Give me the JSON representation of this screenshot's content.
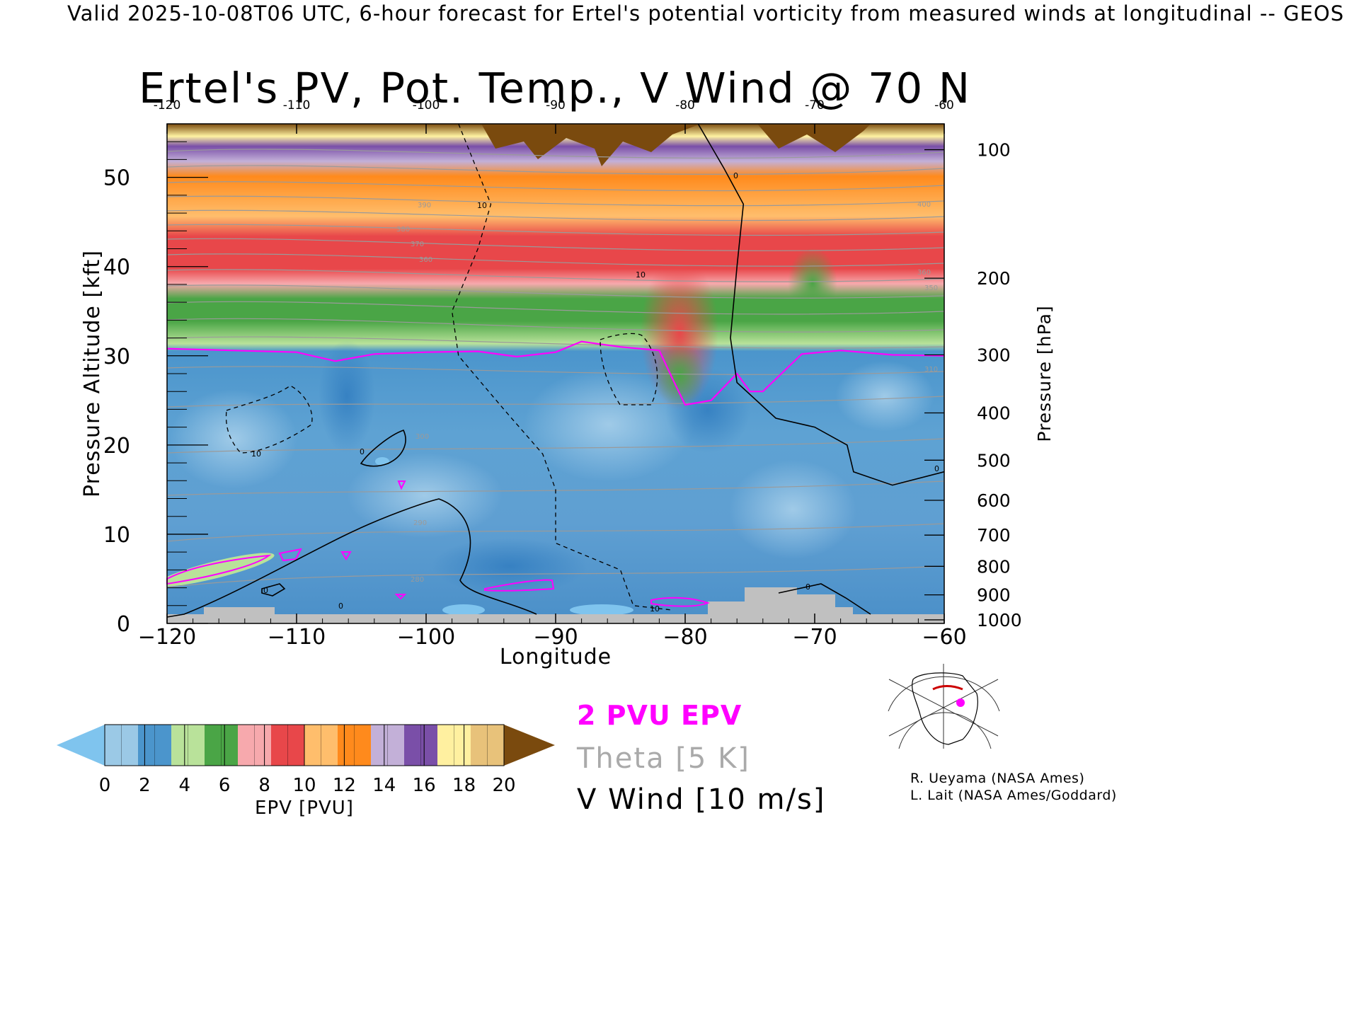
{
  "header": "Valid 2025-10-08T06 UTC, 6-hour forecast for Ertel's potential vorticity from measured winds at longitudinal -- GEOS",
  "chart_data": {
    "type": "heatmap",
    "title": "Ertel's PV, Pot. Temp., V Wind @ 70 N",
    "xlabel": "Longitude",
    "ylabel_left": "Pressure Altitude [kft]",
    "ylabel_right": "Pressure [hPa]",
    "xlim": [
      -120,
      -60
    ],
    "ylim": [
      0,
      56
    ],
    "x_ticks": [
      "−120",
      "−110",
      "−100",
      "−90",
      "−80",
      "−70",
      "−60"
    ],
    "x_ticks_top": [
      "-120",
      "-110",
      "-100",
      "-90",
      "-80",
      "-70",
      "-60"
    ],
    "y_ticks": [
      "0",
      "10",
      "20",
      "30",
      "40",
      "50"
    ],
    "pressure_ticks": [
      {
        "label": "100",
        "kft": 53.1
      },
      {
        "label": "200",
        "kft": 38.7
      },
      {
        "label": "300",
        "kft": 30.1
      },
      {
        "label": "400",
        "kft": 23.6
      },
      {
        "label": "500",
        "kft": 18.3
      },
      {
        "label": "600",
        "kft": 13.8
      },
      {
        "label": "700",
        "kft": 9.9
      },
      {
        "label": "800",
        "kft": 6.4
      },
      {
        "label": "900",
        "kft": 3.2
      },
      {
        "label": "1000",
        "kft": 0.4
      }
    ],
    "tropopause_2pvu_kft": [
      [
        -120,
        30.8
      ],
      [
        -115,
        30.6
      ],
      [
        -110,
        30.4
      ],
      [
        -107,
        29.4
      ],
      [
        -104,
        30.2
      ],
      [
        -100,
        30.4
      ],
      [
        -96,
        30.5
      ],
      [
        -93,
        29.9
      ],
      [
        -90,
        30.4
      ],
      [
        -88,
        31.6
      ],
      [
        -85,
        31.0
      ],
      [
        -82,
        30.6
      ],
      [
        -81,
        27.5
      ],
      [
        -80,
        24.5
      ],
      [
        -78,
        25.0
      ],
      [
        -77,
        26.5
      ],
      [
        -76,
        28.0
      ],
      [
        -75,
        26.0
      ],
      [
        -74,
        26.0
      ],
      [
        -71,
        30.2
      ],
      [
        -68,
        30.6
      ],
      [
        -64,
        30.1
      ],
      [
        -60,
        30.0
      ]
    ],
    "v_wind_0_kft": [
      [
        -79,
        56
      ],
      [
        -77,
        51
      ],
      [
        -75.5,
        47
      ],
      [
        -76,
        40
      ],
      [
        -76.5,
        32
      ],
      [
        -76,
        27
      ],
      [
        -73,
        23
      ],
      [
        -70,
        22
      ],
      [
        -67.5,
        20
      ],
      [
        -67,
        17
      ],
      [
        -64,
        15.5
      ],
      [
        -60,
        17
      ]
    ],
    "v_wind_10_kft": [
      [
        -97.5,
        56
      ],
      [
        -95,
        47
      ],
      [
        -96,
        42
      ],
      [
        -98,
        35
      ],
      [
        -97.5,
        30
      ],
      [
        -94,
        24
      ],
      [
        -91,
        19
      ],
      [
        -90,
        15
      ],
      [
        -90,
        9
      ],
      [
        -85,
        6
      ],
      [
        -84,
        2
      ],
      [
        -81,
        1.5
      ]
    ],
    "colorbar": {
      "label": "EPV [PVU]",
      "ticks": [
        "0",
        "2",
        "4",
        "6",
        "8",
        "10",
        "12",
        "14",
        "16",
        "18",
        "20"
      ],
      "under_color": "#7fc4ee",
      "over_color": "#7a4a0e",
      "bins": [
        "#9bc9e6",
        "#4b95cc",
        "#b9e29a",
        "#4aa546",
        "#f7a9ad",
        "#e8474a",
        "#ffbe6c",
        "#ff8a1c",
        "#c3b0d8",
        "#7a4fa8",
        "#fff0a0",
        "#e8c27a"
      ]
    },
    "legend": {
      "pv": "2 PVU EPV",
      "theta": "Theta [5 K]",
      "wind": "V Wind [10 m/s]",
      "pv_color": "#ff00ff",
      "theta_color": "#aaaaaa",
      "wind_color": "#000000"
    },
    "grid": false
  },
  "credits": [
    "R. Ueyama (NASA Ames)",
    "L. Lait (NASA Ames/Goddard)"
  ]
}
